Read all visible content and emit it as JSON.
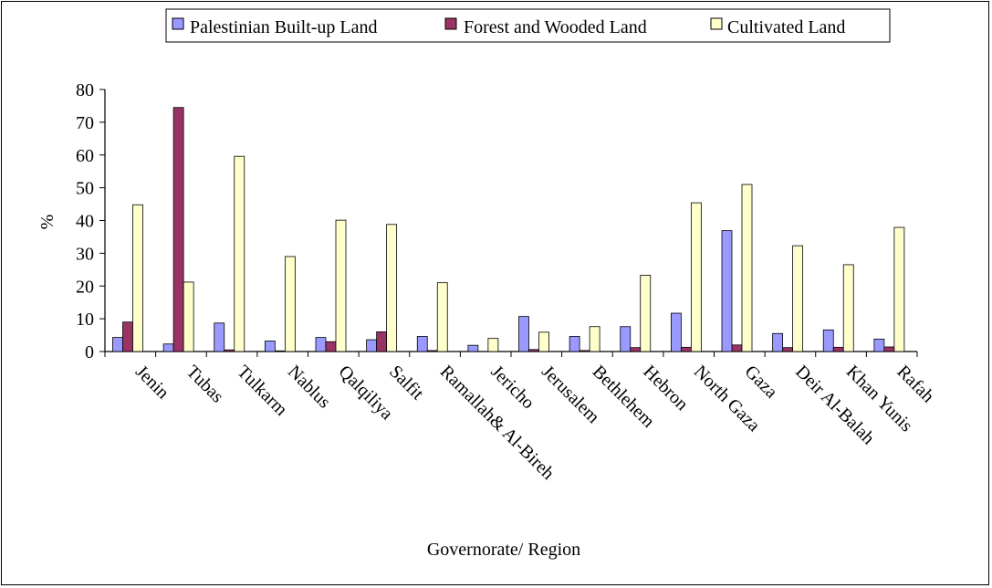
{
  "chart_data": {
    "type": "bar",
    "title": "",
    "xlabel": "Governorate/ Region",
    "ylabel": "%",
    "ylim": [
      0,
      80
    ],
    "yticks": [
      "0",
      "10",
      "20",
      "30",
      "40",
      "50",
      "60",
      "70",
      "80"
    ],
    "grid": false,
    "legend_position": "top",
    "categories": [
      "Jenin",
      "Tubas",
      "Tulkarm",
      "Nablus",
      "Qalqiliya",
      "Salfit",
      "Ramallah& Al-Bireh",
      "Jericho",
      "Jerusalem",
      "Bethlehem",
      "Hebron",
      "North Gaza",
      "Gaza",
      "Deir Al-Balah",
      "Khan Yunis",
      "Rafah"
    ],
    "series": [
      {
        "name": "Palestinian Built-up Land",
        "color": "#9999ff",
        "values": [
          4.3,
          2.3,
          8.7,
          3.2,
          4.3,
          3.6,
          4.6,
          1.9,
          10.7,
          4.6,
          7.6,
          11.7,
          36.9,
          5.5,
          6.6,
          3.8
        ]
      },
      {
        "name": "Forest and Wooded Land",
        "color": "#993366",
        "values": [
          9.0,
          74.5,
          0.5,
          0.2,
          3.0,
          6.0,
          0.3,
          0.0,
          0.6,
          0.3,
          1.2,
          1.3,
          2.0,
          1.2,
          1.3,
          1.4
        ]
      },
      {
        "name": "Cultivated Land",
        "color": "#ffffcc",
        "values": [
          44.8,
          21.2,
          59.6,
          29.0,
          40.1,
          38.8,
          21.0,
          4.0,
          5.9,
          7.6,
          23.3,
          45.4,
          51.0,
          32.3,
          26.5,
          37.9
        ]
      }
    ]
  }
}
